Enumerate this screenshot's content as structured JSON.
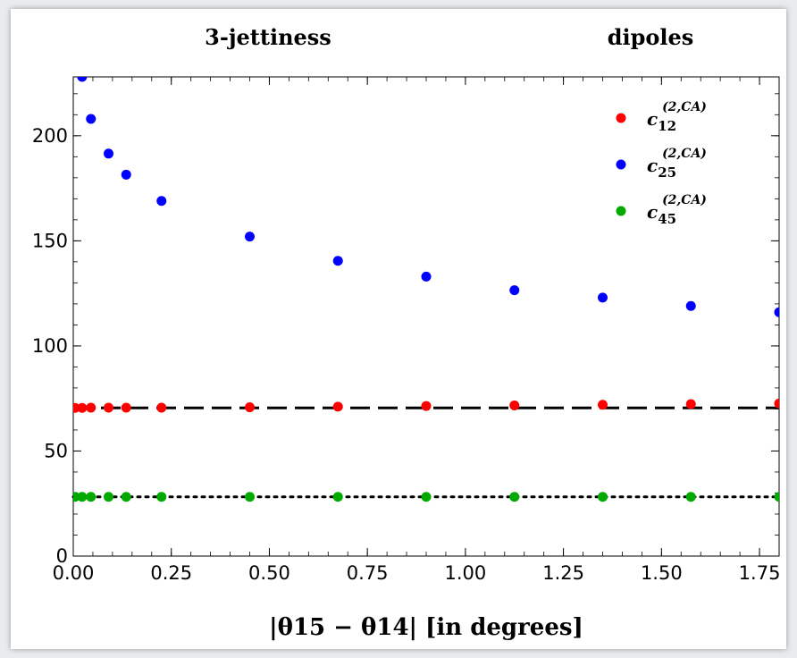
{
  "chart_data": {
    "type": "scatter",
    "headings": [
      "3-jettiness",
      "dipoles"
    ],
    "xlabel": "|θ15 − θ14| [in degrees]",
    "ylabel": "",
    "xlim": [
      0,
      1.8
    ],
    "ylim": [
      0,
      228
    ],
    "xticks": [
      "0.00",
      "0.25",
      "0.50",
      "0.75",
      "1.00",
      "1.25",
      "1.50",
      "1.75"
    ],
    "yticks": [
      "0",
      "50",
      "100",
      "150",
      "200"
    ],
    "x": [
      0.0045,
      0.0225,
      0.045,
      0.09,
      0.135,
      0.225,
      0.45,
      0.675,
      0.9,
      1.125,
      1.35,
      1.575,
      1.8
    ],
    "series": [
      {
        "name": "c12^(2,C_A)",
        "color": "#ff0000",
        "values": [
          70.5,
          70.5,
          70.6,
          70.6,
          70.6,
          70.6,
          70.8,
          71.1,
          71.4,
          71.7,
          72.0,
          72.3,
          72.6
        ]
      },
      {
        "name": "c25^(2,C_A)",
        "color": "#0000ff",
        "values": [
          null,
          228,
          208,
          191.5,
          181.5,
          169,
          152,
          140.5,
          133,
          126.5,
          123,
          119,
          116
        ]
      },
      {
        "name": "c45^(2,C_A)",
        "color": "#00aa00",
        "values": [
          28.2,
          28.2,
          28.2,
          28.2,
          28.2,
          28.2,
          28.2,
          28.2,
          28.2,
          28.2,
          28.2,
          28.2,
          28.2
        ]
      }
    ],
    "reference_lines": [
      {
        "style": "dashed",
        "y": 70.5
      },
      {
        "style": "dotted",
        "y": 28.2
      }
    ],
    "legend_position": "top-right",
    "grid": false
  }
}
